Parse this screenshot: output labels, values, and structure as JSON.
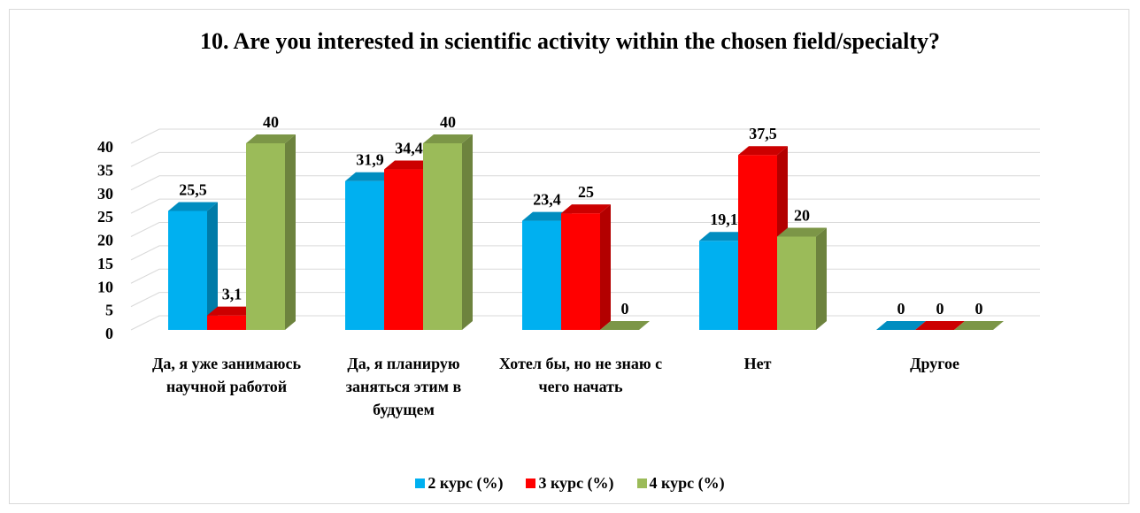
{
  "chart_data": {
    "type": "bar3d",
    "title": "10. Are you interested in scientific activity within the chosen field/specialty?",
    "categories": [
      "Да, я уже занимаюсь научной работой",
      "Да, я планирую заняться этим в будущем",
      "Хотел бы, но не знаю с чего начать",
      "Нет",
      "Другое"
    ],
    "series": [
      {
        "name": "2 курс (%)",
        "color": "#00b0f0",
        "values": [
          25.5,
          31.9,
          23.4,
          19.1,
          0
        ],
        "value_labels": [
          "25,5",
          "31,9",
          "23,4",
          "19,1",
          "0"
        ]
      },
      {
        "name": "3 курс (%)",
        "color": "#ff0000",
        "values": [
          3.1,
          34.4,
          25,
          37.5,
          0
        ],
        "value_labels": [
          "3,1",
          "34,4",
          "25",
          "37,5",
          "0"
        ]
      },
      {
        "name": "4 курс (%)",
        "color": "#9bbb59",
        "values": [
          40,
          40,
          0,
          20,
          0
        ],
        "value_labels": [
          "40",
          "40",
          "0",
          "20",
          "0"
        ]
      }
    ],
    "ylim": [
      0,
      40
    ],
    "yticks": [
      0,
      5,
      10,
      15,
      20,
      25,
      30,
      35,
      40
    ],
    "grid": true,
    "legend": "bottom"
  }
}
